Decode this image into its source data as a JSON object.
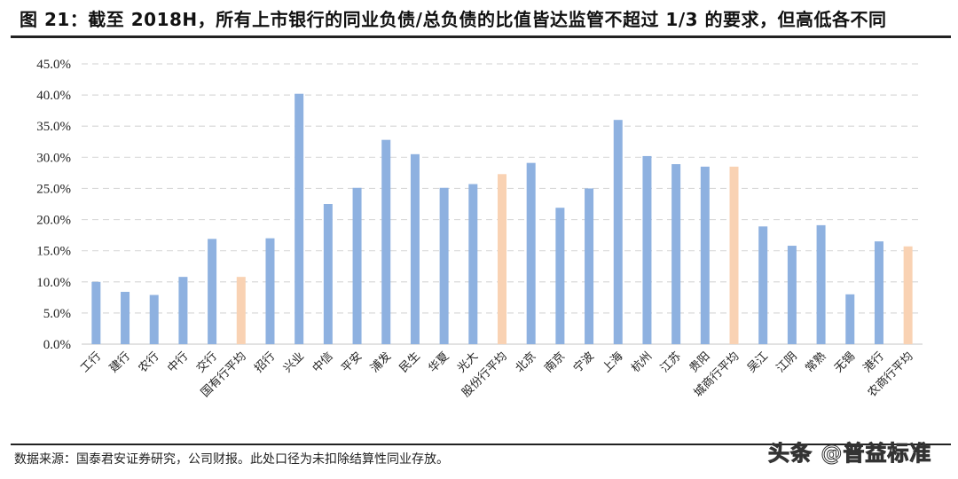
{
  "figure": {
    "title": "图 21：截至 2018H，所有上市银行的同业负债/总负债的比值皆达监管不超过 1/3 的要求，但高低各不同",
    "source": "数据来源：国泰君安证券研究，公司财报。此处口径为未扣除结算性同业存放。",
    "watermark": "头条 @普益标准"
  },
  "colors": {
    "bank_bar": "#8EB1E0",
    "average_bar": "#F9D2B3",
    "gridline": "#D9D9D9",
    "axis": "#D9D9D9"
  },
  "chart_data": {
    "type": "bar",
    "title": "截至 2018H，所有上市银行的同业负债/总负债的比值",
    "xlabel": "",
    "ylabel": "",
    "ylim": [
      0,
      45
    ],
    "y_ticks": [
      "0.0%",
      "5.0%",
      "10.0%",
      "15.0%",
      "20.0%",
      "25.0%",
      "30.0%",
      "35.0%",
      "40.0%",
      "45.0%"
    ],
    "grid": true,
    "legend": null,
    "categories": [
      "工行",
      "建行",
      "农行",
      "中行",
      "交行",
      "国有行平均",
      "招行",
      "兴业",
      "中信",
      "平安",
      "浦发",
      "民生",
      "华夏",
      "光大",
      "股份行平均",
      "北京",
      "南京",
      "宁波",
      "上海",
      "杭州",
      "江苏",
      "贵阳",
      "城商行平均",
      "吴江",
      "江阴",
      "常熟",
      "无锡",
      "港行",
      "农商行平均"
    ],
    "values": [
      10.0,
      8.4,
      7.9,
      10.8,
      16.9,
      10.8,
      17.0,
      40.2,
      22.5,
      25.1,
      32.8,
      30.5,
      25.1,
      25.7,
      27.3,
      29.1,
      21.9,
      25.0,
      36.0,
      30.2,
      28.9,
      28.5,
      28.5,
      18.9,
      15.8,
      19.1,
      8.0,
      16.5,
      15.7
    ],
    "is_average": [
      false,
      false,
      false,
      false,
      false,
      true,
      false,
      false,
      false,
      false,
      false,
      false,
      false,
      false,
      true,
      false,
      false,
      false,
      false,
      false,
      false,
      false,
      true,
      false,
      false,
      false,
      false,
      false,
      true
    ],
    "unit": "%"
  }
}
